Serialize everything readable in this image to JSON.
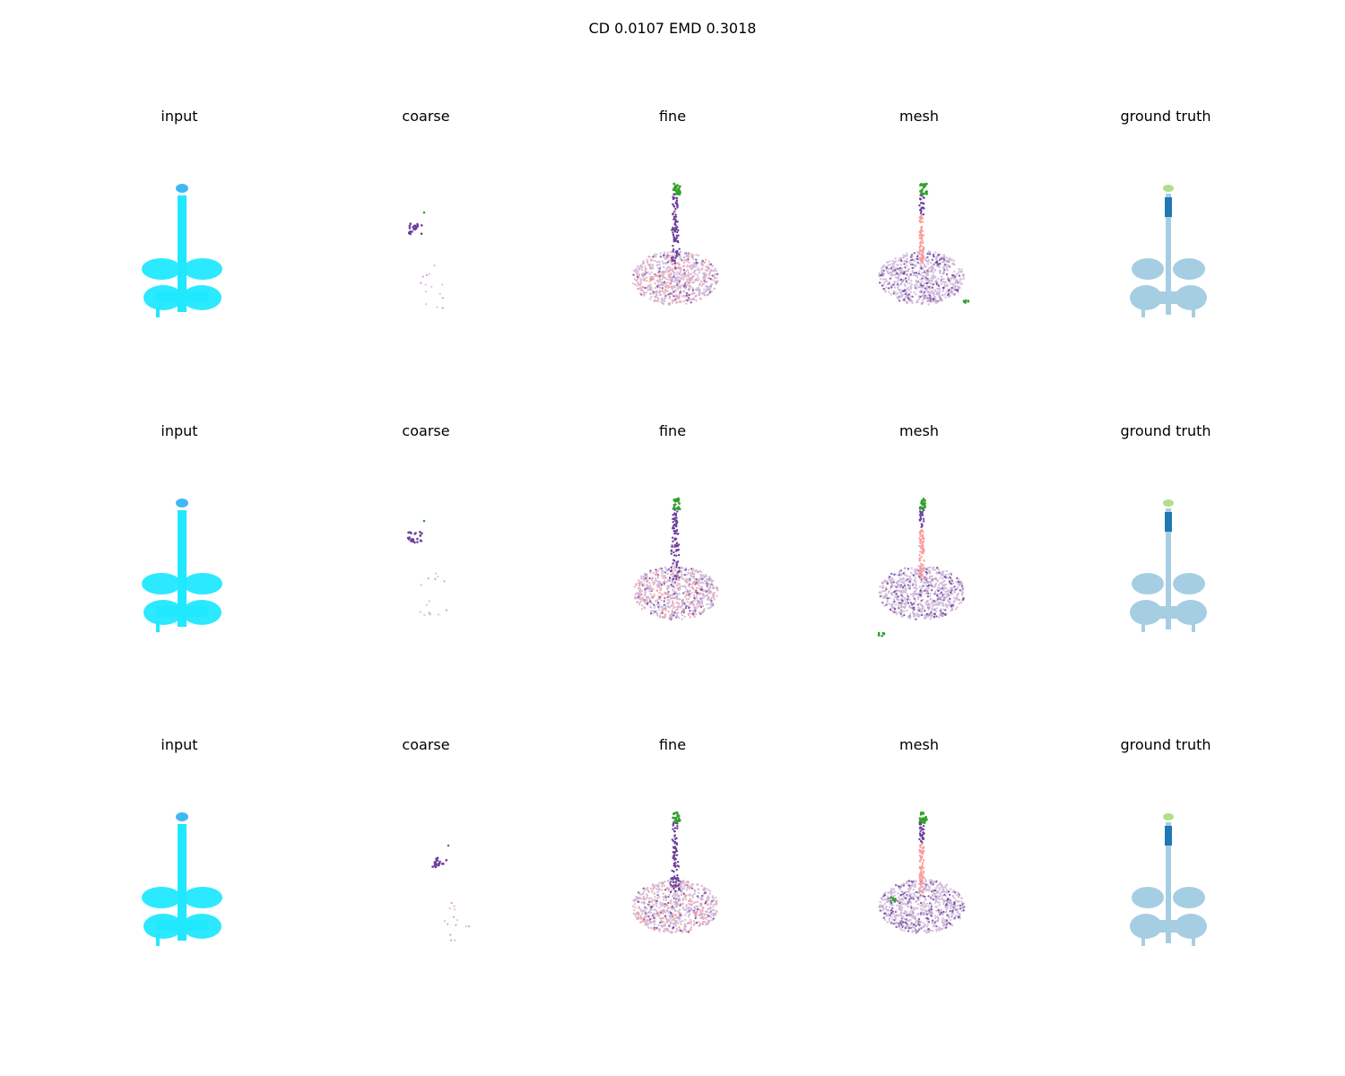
{
  "figure": {
    "title": "CD 0.0107  EMD 0.3018"
  },
  "rows": [
    {
      "panels": [
        {
          "label": "input"
        },
        {
          "label": "coarse"
        },
        {
          "label": "fine"
        },
        {
          "label": "mesh"
        },
        {
          "label": "ground truth"
        }
      ]
    },
    {
      "panels": [
        {
          "label": "input"
        },
        {
          "label": "coarse"
        },
        {
          "label": "fine"
        },
        {
          "label": "mesh"
        },
        {
          "label": "ground truth"
        }
      ]
    },
    {
      "panels": [
        {
          "label": "input"
        },
        {
          "label": "coarse"
        },
        {
          "label": "fine"
        },
        {
          "label": "mesh"
        },
        {
          "label": "ground truth"
        }
      ]
    }
  ],
  "colors": {
    "input_head": "#3fb8f5",
    "input_body": "#20e8ff",
    "gt_body": "#a6cee3",
    "gt_dark": "#1f78b4",
    "gt_top": "#b2df8a",
    "purple": "#6a3d9a",
    "lavender": "#cab2d6",
    "salmon": "#fb9a99",
    "green": "#33a02c",
    "pink": "#e7c6e0"
  }
}
